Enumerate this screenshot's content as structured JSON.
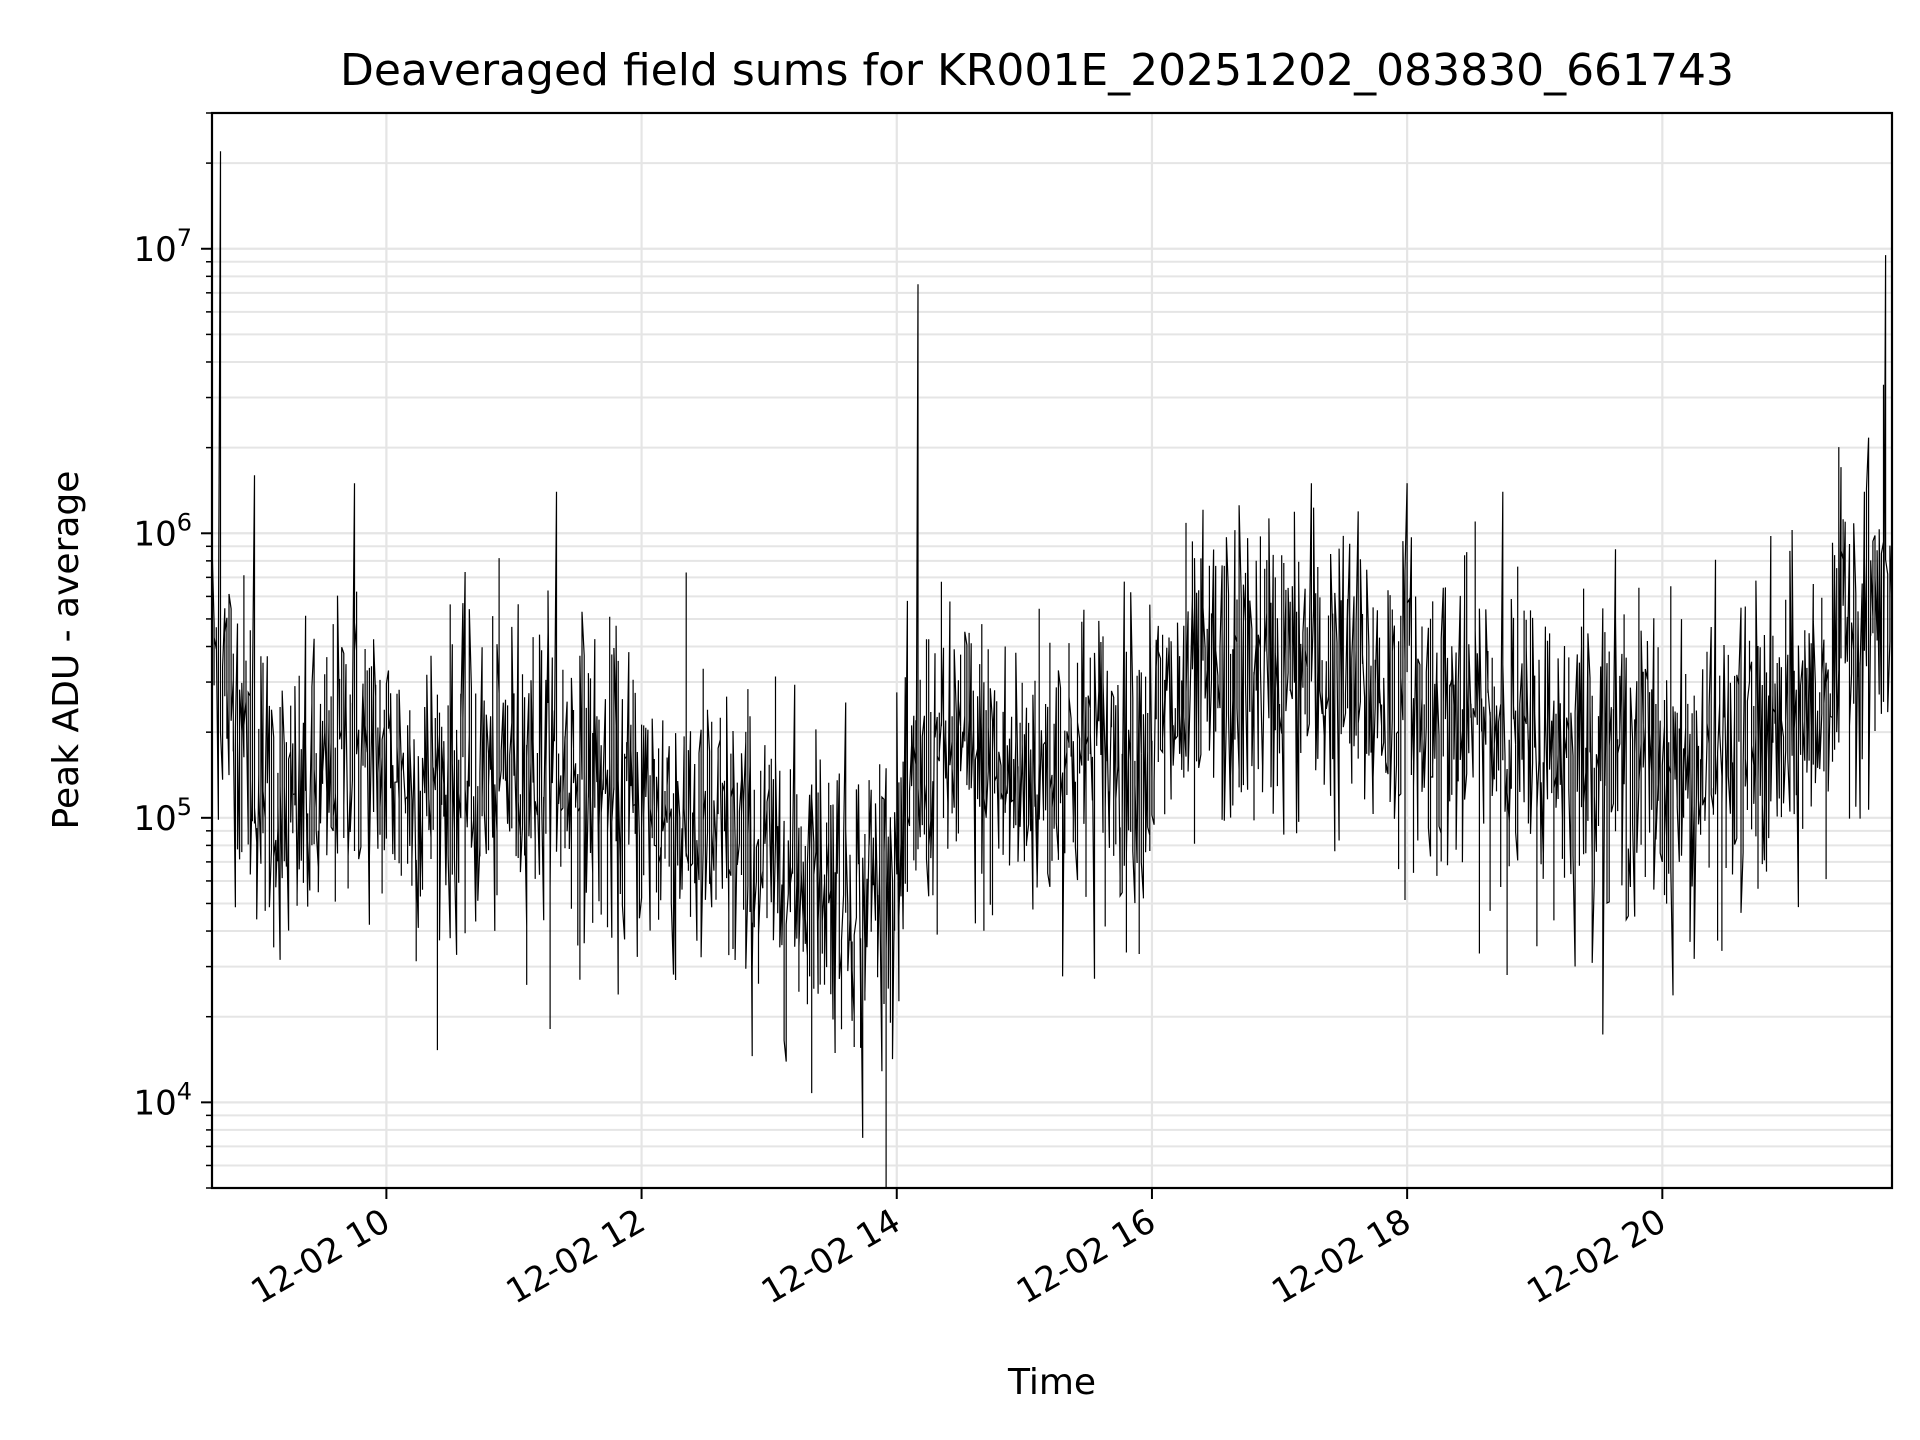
{
  "chart_data": {
    "type": "line",
    "title": "Deaveraged field sums for KR001E_20251202_083830_661743",
    "xlabel": "Time",
    "ylabel": "Peak ADU - average",
    "yscale": "log",
    "grid": true,
    "line_color": "#000000",
    "grid_color": "#e5e5e5",
    "xlim": [
      "2025-12-02 08:38",
      "2025-12-02 21:48"
    ],
    "ylim": [
      5000,
      30000000
    ],
    "x_ticks": [
      {
        "value": "2025-12-02 10:00",
        "label": "12-02 10"
      },
      {
        "value": "2025-12-02 12:00",
        "label": "12-02 12"
      },
      {
        "value": "2025-12-02 14:00",
        "label": "12-02 14"
      },
      {
        "value": "2025-12-02 16:00",
        "label": "12-02 16"
      },
      {
        "value": "2025-12-02 18:00",
        "label": "12-02 18"
      },
      {
        "value": "2025-12-02 20:00",
        "label": "12-02 20"
      }
    ],
    "y_ticks": [
      {
        "value": 10000,
        "base": "10",
        "exp": "4"
      },
      {
        "value": 100000,
        "base": "10",
        "exp": "5"
      },
      {
        "value": 1000000,
        "base": "10",
        "exp": "6"
      },
      {
        "value": 10000000,
        "base": "10",
        "exp": "7"
      }
    ],
    "series": [
      {
        "x": [
          "2025-12-02 08:38",
          "2025-12-02 08:45",
          "2025-12-02 09:00",
          "2025-12-02 09:15",
          "2025-12-02 09:30",
          "2025-12-02 09:45",
          "2025-12-02 10:00",
          "2025-12-02 10:15",
          "2025-12-02 10:30",
          "2025-12-02 10:45",
          "2025-12-02 11:00",
          "2025-12-02 11:15",
          "2025-12-02 11:30",
          "2025-12-02 11:45",
          "2025-12-02 12:00",
          "2025-12-02 12:15",
          "2025-12-02 12:30",
          "2025-12-02 12:45",
          "2025-12-02 13:00",
          "2025-12-02 13:15",
          "2025-12-02 13:30",
          "2025-12-02 13:45",
          "2025-12-02 14:00",
          "2025-12-02 14:15",
          "2025-12-02 14:30",
          "2025-12-02 14:45",
          "2025-12-02 15:00",
          "2025-12-02 15:15",
          "2025-12-02 15:30",
          "2025-12-02 15:45",
          "2025-12-02 16:00",
          "2025-12-02 16:15",
          "2025-12-02 16:30",
          "2025-12-02 16:45",
          "2025-12-02 17:00",
          "2025-12-02 17:15",
          "2025-12-02 17:30",
          "2025-12-02 17:45",
          "2025-12-02 18:00",
          "2025-12-02 18:15",
          "2025-12-02 18:30",
          "2025-12-02 18:45",
          "2025-12-02 19:00",
          "2025-12-02 19:15",
          "2025-12-02 19:30",
          "2025-12-02 19:45",
          "2025-12-02 20:00",
          "2025-12-02 20:15",
          "2025-12-02 20:30",
          "2025-12-02 20:45",
          "2025-12-02 21:00",
          "2025-12-02 21:15",
          "2025-12-02 21:30",
          "2025-12-02 21:45"
        ],
        "y": [
          400000,
          300000,
          150000,
          100000,
          120000,
          200000,
          150000,
          120000,
          140000,
          130000,
          160000,
          150000,
          140000,
          120000,
          110000,
          100000,
          90000,
          80000,
          70000,
          65000,
          60000,
          55000,
          60000,
          150000,
          170000,
          140000,
          130000,
          160000,
          170000,
          150000,
          180000,
          250000,
          300000,
          320000,
          350000,
          330000,
          300000,
          280000,
          260000,
          230000,
          220000,
          200000,
          180000,
          170000,
          180000,
          170000,
          150000,
          140000,
          150000,
          170000,
          200000,
          250000,
          500000,
          550000
        ],
        "spikes": [
          {
            "x": "2025-12-02 08:42",
            "y": 22000000
          },
          {
            "x": "2025-12-02 08:58",
            "y": 1600000
          },
          {
            "x": "2025-12-02 09:45",
            "y": 1500000
          },
          {
            "x": "2025-12-02 11:20",
            "y": 1400000
          },
          {
            "x": "2025-12-02 13:44",
            "y": 7500
          },
          {
            "x": "2025-12-02 14:10",
            "y": 7500000
          },
          {
            "x": "2025-12-02 17:15",
            "y": 1500000
          },
          {
            "x": "2025-12-02 18:00",
            "y": 1500000
          },
          {
            "x": "2025-12-02 18:45",
            "y": 1400000
          },
          {
            "x": "2025-12-02 21:35",
            "y": 1400000
          },
          {
            "x": "2025-12-02 21:45",
            "y": 9500000
          }
        ]
      }
    ]
  }
}
